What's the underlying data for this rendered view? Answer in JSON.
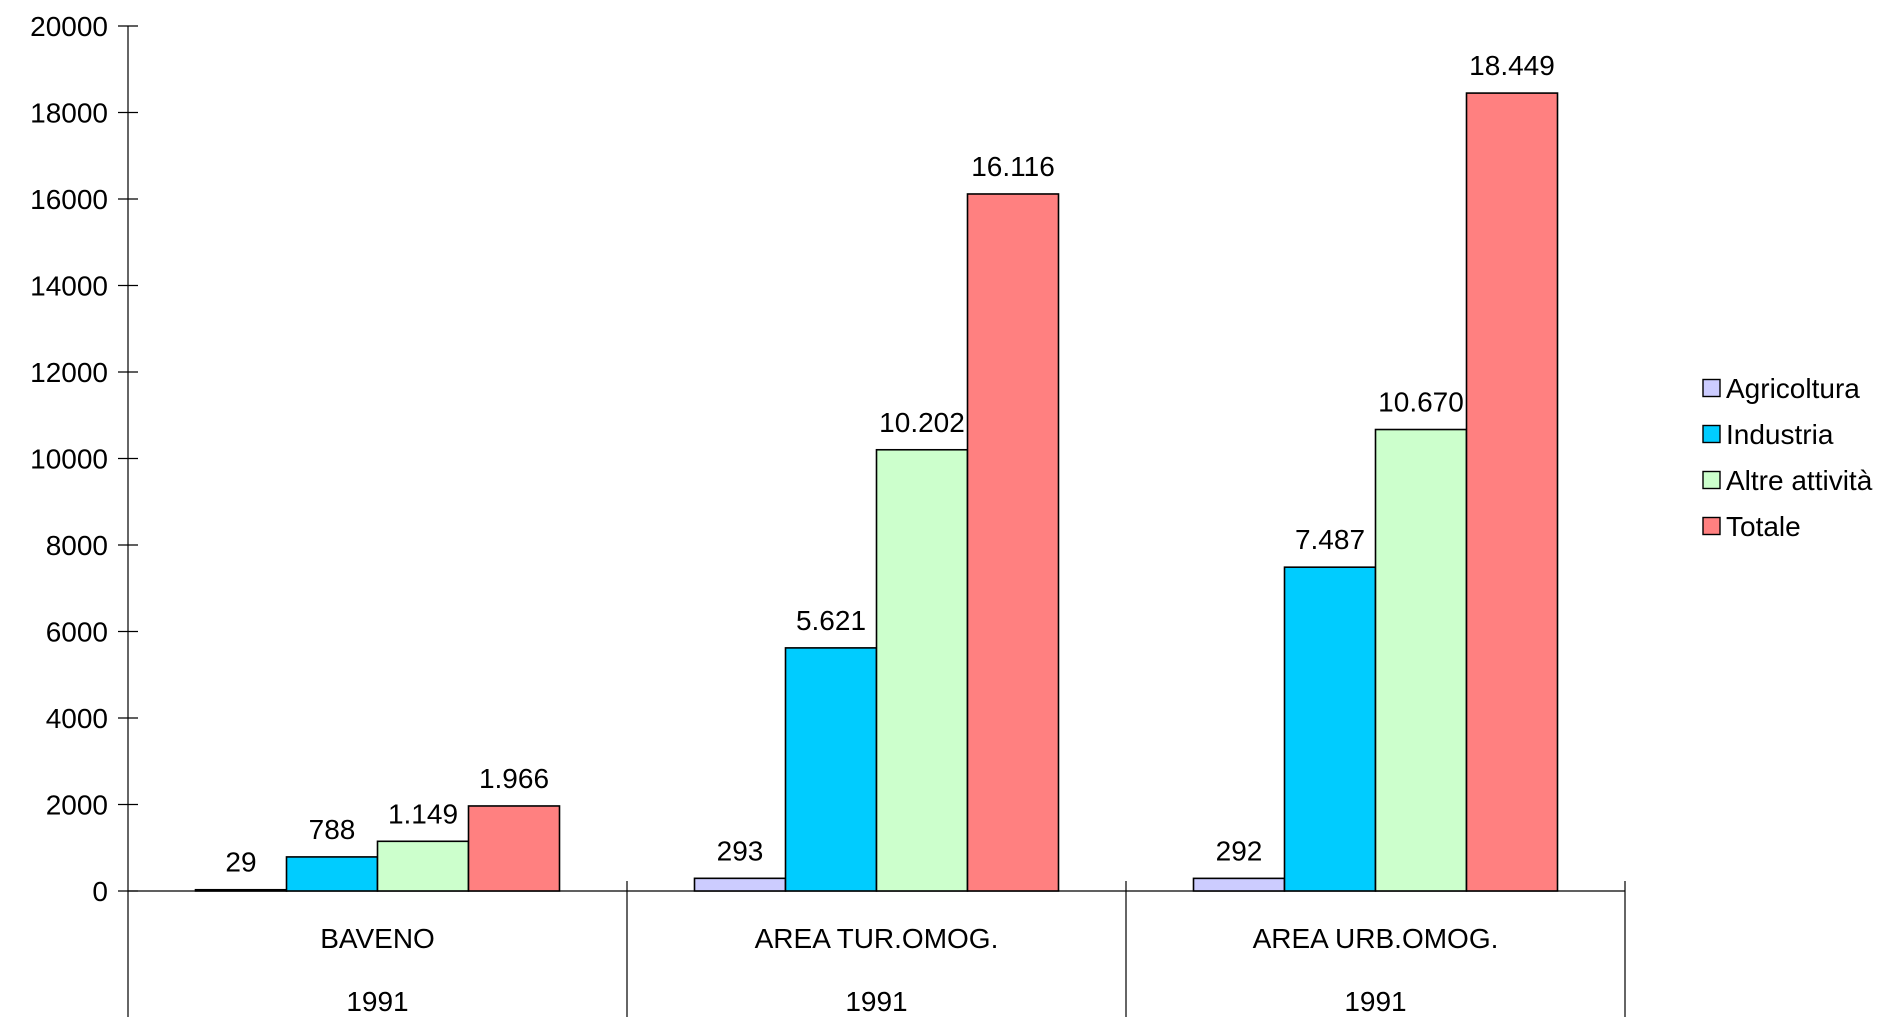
{
  "chart_data": {
    "type": "bar",
    "title": "",
    "xlabel": "",
    "ylabel": "",
    "ylim": [
      0,
      20000
    ],
    "yticks": [
      0,
      2000,
      4000,
      6000,
      8000,
      10000,
      12000,
      14000,
      16000,
      18000,
      20000
    ],
    "categories": [
      "BAVENO",
      "AREA TUR.OMOG.",
      "AREA URB.OMOG."
    ],
    "category_sublabels": [
      "1991",
      "1991",
      "1991"
    ],
    "series": [
      {
        "name": "Agricoltura",
        "color": "#ccccff",
        "values": [
          29,
          293,
          292
        ],
        "labels": [
          "29",
          "293",
          "292"
        ]
      },
      {
        "name": "Industria",
        "color": "#00ccff",
        "values": [
          788,
          5621,
          7487
        ],
        "labels": [
          "788",
          "5.621",
          "7.487"
        ]
      },
      {
        "name": "Altre attività",
        "color": "#ccffcc",
        "values": [
          1149,
          10202,
          10670
        ],
        "labels": [
          "1.149",
          "10.202",
          "10.670"
        ]
      },
      {
        "name": "Totale",
        "color": "#ff8080",
        "values": [
          1966,
          16116,
          18449
        ],
        "labels": [
          "1.966",
          "16.116",
          "18.449"
        ]
      }
    ],
    "grid": false,
    "legend_position": "right"
  }
}
